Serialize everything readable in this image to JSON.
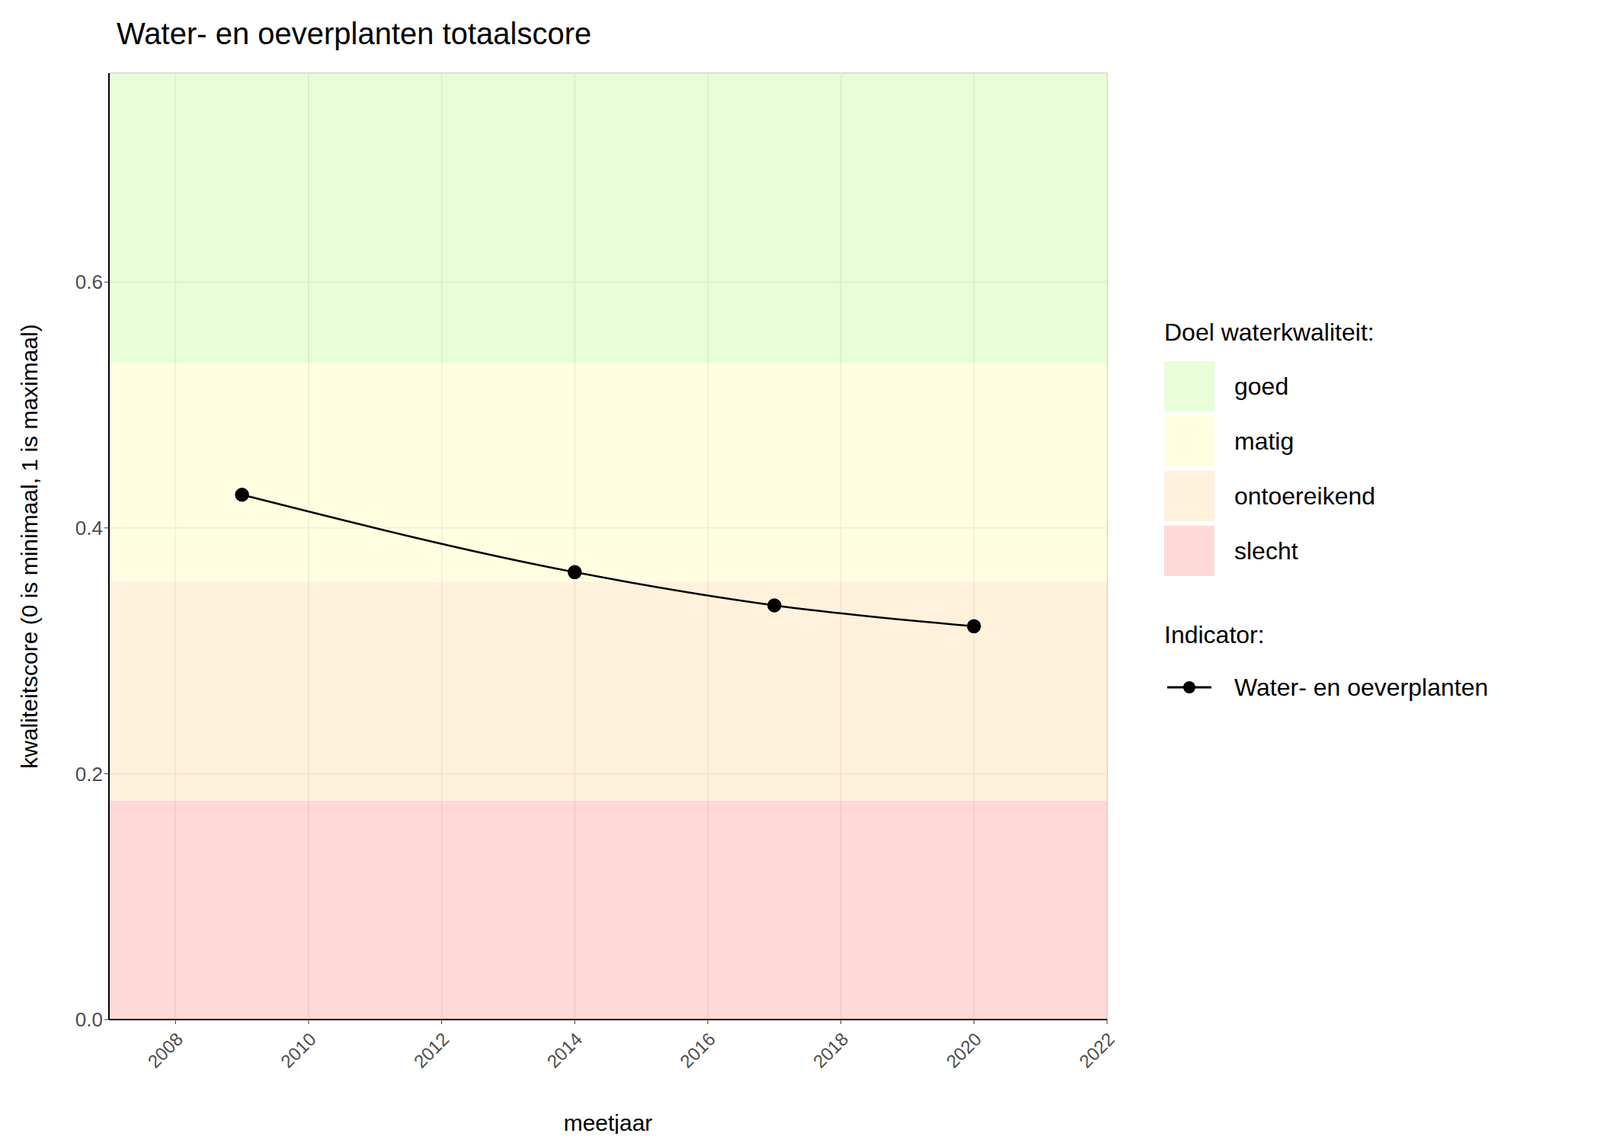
{
  "chart_data": {
    "type": "line",
    "title": "Water- en oeverplanten totaalscore",
    "x_label": "meetjaar",
    "y_label": "kwaliteitscore (0 is minimaal, 1 is maximaal)",
    "x": [
      2009,
      2014,
      2017,
      2020
    ],
    "series": [
      {
        "name": "Water- en oeverplanten",
        "color": "#000000",
        "marker": "circle",
        "values": [
          0.427,
          0.364,
          0.337,
          0.32
        ]
      }
    ],
    "xlim": [
      2007,
      2022
    ],
    "xticks": [
      2008,
      2010,
      2012,
      2014,
      2016,
      2018,
      2020,
      2022
    ],
    "ylim": [
      0,
      0.77
    ],
    "yticks": [
      {
        "value": 0,
        "label": "0.0"
      },
      0.2,
      0.4,
      0.6
    ],
    "grid": true,
    "legend": "right",
    "bands_title": "Doel waterkwaliteit:",
    "bands": [
      {
        "name": "goed",
        "color": "#defdc7",
        "from": 0.534,
        "to": 0.77
      },
      {
        "name": "matig",
        "color": "#fffed3",
        "from": 0.356,
        "to": 0.534
      },
      {
        "name": "ontoereikend",
        "color": "#ffebcd",
        "from": 0.178,
        "to": 0.356
      },
      {
        "name": "slecht",
        "color": "#ffc7c7",
        "from": 0,
        "to": 0.178
      }
    ],
    "series_legend_title": "Indicator:"
  }
}
